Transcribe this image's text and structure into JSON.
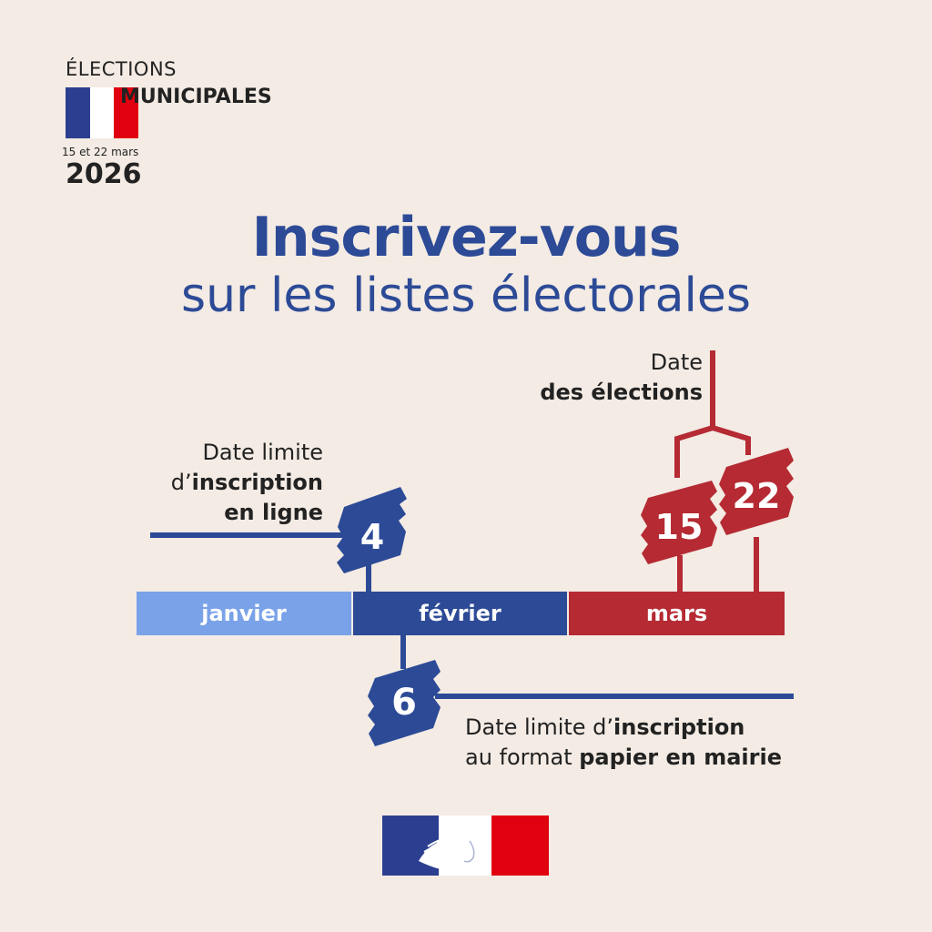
{
  "header": {
    "line1": "ÉLECTIONS",
    "line2": "MUNICIPALES",
    "dates": "15 et 22 mars",
    "year": "2026"
  },
  "title": {
    "line1": "Inscrivez-vous",
    "line2": "sur les listes électorales"
  },
  "months": [
    "janvier",
    "février",
    "mars"
  ],
  "events": {
    "online_deadline": {
      "day": "4",
      "l1": "Date limite",
      "l2_pre": "d’",
      "l2_bold": "inscription",
      "l3_bold": "en ligne"
    },
    "paper_deadline": {
      "day": "6",
      "l1_pre": "Date limite d’",
      "l1_bold": "inscription",
      "l2_pre": "au format ",
      "l2_bold": "papier en mairie"
    },
    "election": {
      "day1": "15",
      "day2": "22",
      "l1": "Date",
      "l2_bold": "des élections"
    }
  },
  "colors": {
    "blue_light": "#7aa2e8",
    "blue": "#2c4a96",
    "red": "#b52a33",
    "flag_blue": "#2c3e8f",
    "flag_red": "#e1000f",
    "background": "#f3ebe4"
  }
}
